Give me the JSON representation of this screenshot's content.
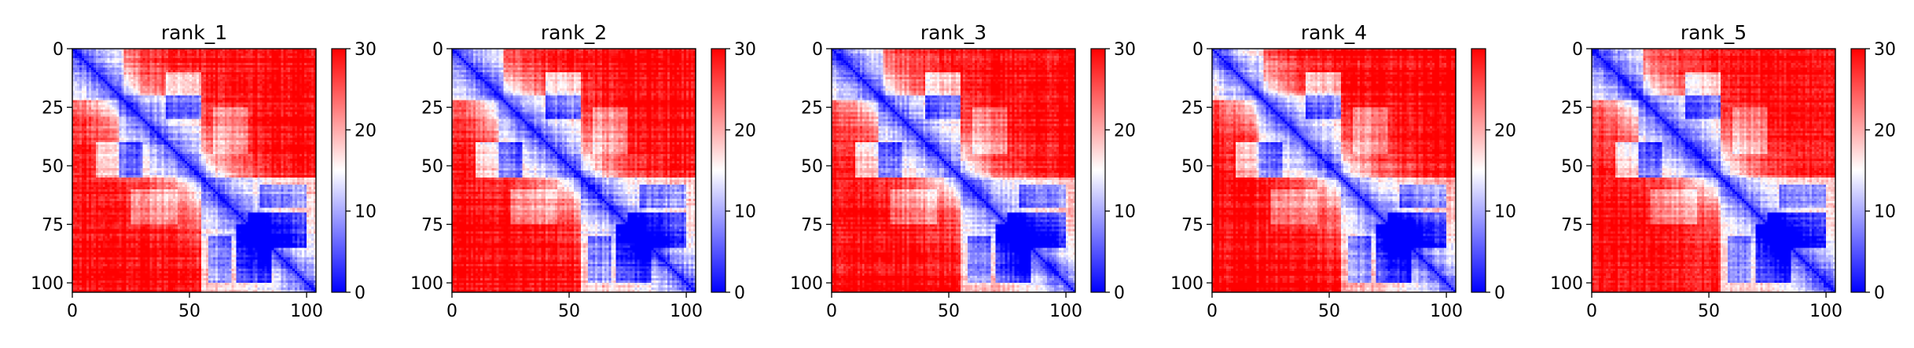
{
  "chart_data": [
    {
      "type": "heatmap",
      "title": "rank_1",
      "n": 104,
      "xlim": [
        0,
        104
      ],
      "ylim": [
        104,
        0
      ],
      "xticks": [
        0,
        50,
        100
      ],
      "yticks": [
        0,
        25,
        50,
        75,
        100
      ],
      "colorbar": {
        "vmin": 0,
        "vmax": 30,
        "ticks": [
          0,
          10,
          20,
          30
        ],
        "colormap": "bwr"
      },
      "seed": 11
    },
    {
      "type": "heatmap",
      "title": "rank_2",
      "n": 104,
      "xlim": [
        0,
        104
      ],
      "ylim": [
        104,
        0
      ],
      "xticks": [
        0,
        50,
        100
      ],
      "yticks": [
        0,
        25,
        50,
        75,
        100
      ],
      "colorbar": {
        "vmin": 0,
        "vmax": 30,
        "ticks": [
          0,
          10,
          20,
          30
        ],
        "colormap": "bwr"
      },
      "seed": 23
    },
    {
      "type": "heatmap",
      "title": "rank_3",
      "n": 104,
      "xlim": [
        0,
        104
      ],
      "ylim": [
        104,
        0
      ],
      "xticks": [
        0,
        50,
        100
      ],
      "yticks": [
        0,
        25,
        50,
        75,
        100
      ],
      "colorbar": {
        "vmin": 0,
        "vmax": 30,
        "ticks": [
          0,
          10,
          20,
          30
        ],
        "colormap": "bwr"
      },
      "seed": 37
    },
    {
      "type": "heatmap",
      "title": "rank_4",
      "n": 104,
      "xlim": [
        0,
        104
      ],
      "ylim": [
        104,
        0
      ],
      "xticks": [
        0,
        50,
        100
      ],
      "yticks": [
        0,
        25,
        50,
        75,
        100
      ],
      "colorbar": {
        "vmin": 0,
        "vmax": 30,
        "ticks": [
          0,
          10,
          20
        ],
        "colormap": "bwr"
      },
      "seed": 41
    },
    {
      "type": "heatmap",
      "title": "rank_5",
      "n": 104,
      "xlim": [
        0,
        104
      ],
      "ylim": [
        104,
        0
      ],
      "xticks": [
        0,
        50,
        100
      ],
      "yticks": [
        0,
        25,
        50,
        75,
        100
      ],
      "colorbar": {
        "vmin": 0,
        "vmax": 30,
        "ticks": [
          0,
          10,
          20,
          30
        ],
        "colormap": "bwr"
      },
      "seed": 53
    }
  ]
}
